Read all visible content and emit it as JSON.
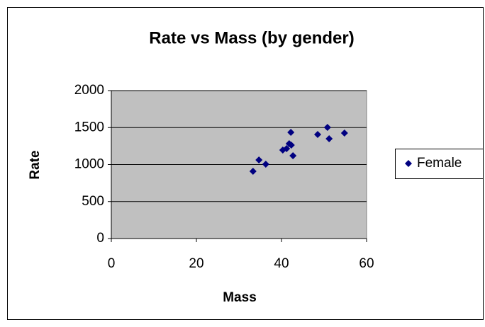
{
  "chart_data": {
    "type": "scatter",
    "title": "Rate vs Mass (by gender)",
    "x_label": "Mass",
    "y_label": "Rate",
    "series": [
      {
        "name": "Female",
        "color": "#000080",
        "x": [
          33.3,
          34.7,
          36.3,
          40.3,
          41.2,
          41.8,
          42.2,
          42.3,
          42.7,
          48.5,
          50.8,
          51.2,
          54.8
        ],
        "values": [
          909,
          1062,
          1005,
          1196,
          1215,
          1282,
          1435,
          1263,
          1120,
          1407,
          1502,
          1349,
          1426
        ]
      }
    ],
    "xlim": [
      0,
      60
    ],
    "xticks": [
      0,
      20,
      40,
      60
    ],
    "ylim": [
      0,
      2000
    ],
    "yticks": [
      0,
      500,
      1000,
      1500,
      2000
    ],
    "grid": true,
    "legend": "right"
  }
}
